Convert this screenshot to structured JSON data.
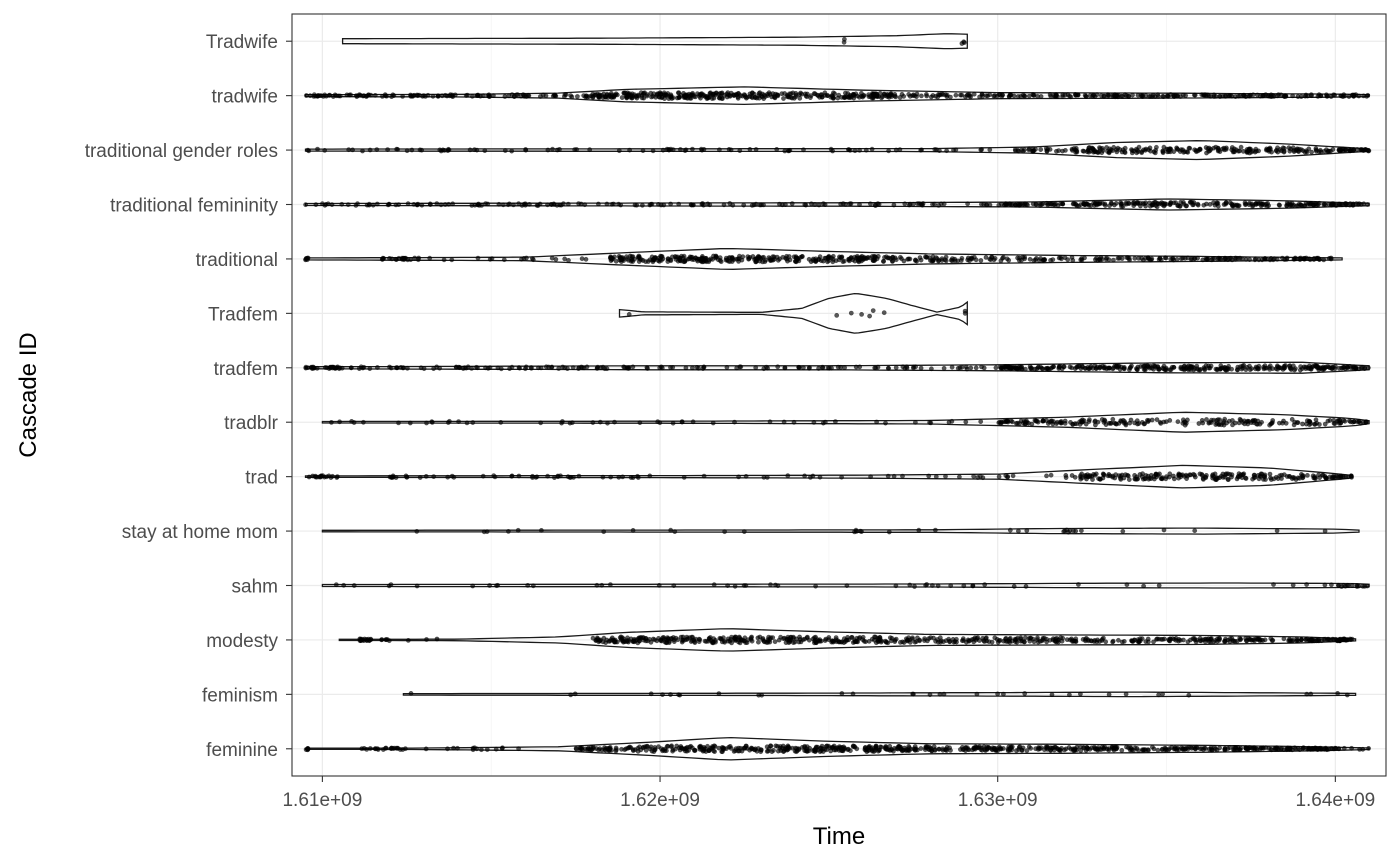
{
  "chart_data": {
    "type": "violin",
    "title": "",
    "xlabel": "Time",
    "ylabel": "Cascade ID",
    "xlim": [
      1609100000,
      1641500000
    ],
    "x_ticks": [
      1610000000,
      1620000000,
      1630000000,
      1640000000
    ],
    "x_tick_labels": [
      "1.61e+09",
      "1.62e+09",
      "1.63e+09",
      "1.64e+09"
    ],
    "grid": true,
    "series": [
      {
        "name": "feminine",
        "range": [
          1609500000,
          1641000000
        ],
        "density": [
          [
            1609500000,
            0.02
          ],
          [
            1613000000,
            0.03
          ],
          [
            1617000000,
            0.08
          ],
          [
            1619500000,
            0.25
          ],
          [
            1622000000,
            0.45
          ],
          [
            1625000000,
            0.3
          ],
          [
            1628000000,
            0.2
          ],
          [
            1632000000,
            0.18
          ],
          [
            1636000000,
            0.14
          ],
          [
            1639500000,
            0.08
          ],
          [
            1641000000,
            0.03
          ]
        ],
        "clusters": [
          [
            1609500000,
            1609600000,
            6
          ],
          [
            1611000000,
            1612500000,
            22
          ],
          [
            1613000000,
            1616500000,
            14
          ],
          [
            1617500000,
            1619000000,
            40
          ],
          [
            1619000000,
            1627000000,
            260
          ],
          [
            1627000000,
            1632000000,
            150
          ],
          [
            1632000000,
            1640000000,
            220
          ],
          [
            1640000000,
            1641000000,
            8
          ]
        ]
      },
      {
        "name": "feminism",
        "range": [
          1612400000,
          1640600000
        ],
        "density": [
          [
            1612400000,
            0.03
          ],
          [
            1620000000,
            0.04
          ],
          [
            1625000000,
            0.05
          ],
          [
            1630000000,
            0.07
          ],
          [
            1634000000,
            0.09
          ],
          [
            1637000000,
            0.07
          ],
          [
            1640600000,
            0.04
          ]
        ],
        "clusters": [
          [
            1612500000,
            1640500000,
            34
          ]
        ]
      },
      {
        "name": "modesty",
        "range": [
          1610500000,
          1640600000
        ],
        "density": [
          [
            1610500000,
            0.02
          ],
          [
            1614000000,
            0.03
          ],
          [
            1617000000,
            0.12
          ],
          [
            1619000000,
            0.3
          ],
          [
            1622000000,
            0.45
          ],
          [
            1625000000,
            0.32
          ],
          [
            1628000000,
            0.22
          ],
          [
            1632000000,
            0.2
          ],
          [
            1636000000,
            0.18
          ],
          [
            1639000000,
            0.12
          ],
          [
            1640600000,
            0.04
          ]
        ],
        "clusters": [
          [
            1611000000,
            1612000000,
            24
          ],
          [
            1612500000,
            1613500000,
            3
          ],
          [
            1618000000,
            1626000000,
            260
          ],
          [
            1626000000,
            1632000000,
            150
          ],
          [
            1632000000,
            1640500000,
            200
          ]
        ]
      },
      {
        "name": "sahm",
        "range": [
          1610000000,
          1641000000
        ],
        "density": [
          [
            1610000000,
            0.04
          ],
          [
            1620000000,
            0.05
          ],
          [
            1628000000,
            0.06
          ],
          [
            1633000000,
            0.09
          ],
          [
            1637000000,
            0.1
          ],
          [
            1640500000,
            0.08
          ],
          [
            1641000000,
            0.05
          ]
        ],
        "clusters": [
          [
            1610000000,
            1640500000,
            50
          ],
          [
            1640000000,
            1641000000,
            14
          ]
        ]
      },
      {
        "name": "stay at home mom",
        "range": [
          1610000000,
          1640700000
        ],
        "density": [
          [
            1610000000,
            0.03
          ],
          [
            1620000000,
            0.04
          ],
          [
            1628000000,
            0.05
          ],
          [
            1631500000,
            0.1
          ],
          [
            1636000000,
            0.12
          ],
          [
            1640000000,
            0.08
          ],
          [
            1640700000,
            0.04
          ]
        ],
        "clusters": [
          [
            1610000000,
            1640500000,
            28
          ],
          [
            1631500000,
            1632500000,
            8
          ]
        ]
      },
      {
        "name": "trad",
        "range": [
          1609500000,
          1640500000
        ],
        "density": [
          [
            1609500000,
            0.03
          ],
          [
            1620000000,
            0.04
          ],
          [
            1626000000,
            0.06
          ],
          [
            1630000000,
            0.1
          ],
          [
            1633000000,
            0.3
          ],
          [
            1635500000,
            0.45
          ],
          [
            1638000000,
            0.35
          ],
          [
            1640000000,
            0.12
          ],
          [
            1640500000,
            0.05
          ]
        ],
        "clusters": [
          [
            1609500000,
            1610500000,
            18
          ],
          [
            1612000000,
            1614000000,
            16
          ],
          [
            1614000000,
            1632000000,
            60
          ],
          [
            1632000000,
            1640500000,
            220
          ]
        ]
      },
      {
        "name": "tradblr",
        "range": [
          1610000000,
          1641000000
        ],
        "density": [
          [
            1610000000,
            0.03
          ],
          [
            1620000000,
            0.04
          ],
          [
            1628000000,
            0.07
          ],
          [
            1632000000,
            0.2
          ],
          [
            1635500000,
            0.4
          ],
          [
            1638500000,
            0.3
          ],
          [
            1640500000,
            0.15
          ],
          [
            1641000000,
            0.06
          ]
        ],
        "clusters": [
          [
            1610000000,
            1630000000,
            50
          ],
          [
            1630000000,
            1641000000,
            220
          ]
        ]
      },
      {
        "name": "tradfem",
        "range": [
          1609500000,
          1641000000
        ],
        "density": [
          [
            1609500000,
            0.04
          ],
          [
            1615000000,
            0.06
          ],
          [
            1620000000,
            0.08
          ],
          [
            1625000000,
            0.08
          ],
          [
            1630000000,
            0.12
          ],
          [
            1635000000,
            0.2
          ],
          [
            1639000000,
            0.22
          ],
          [
            1641000000,
            0.08
          ]
        ],
        "clusters": [
          [
            1609500000,
            1610500000,
            30
          ],
          [
            1610500000,
            1630000000,
            150
          ],
          [
            1630000000,
            1641000000,
            320
          ]
        ]
      },
      {
        "name": "Tradfem",
        "range": [
          1618800000,
          1629100000
        ],
        "density": [
          [
            1618800000,
            0.15
          ],
          [
            1619500000,
            0.06
          ],
          [
            1623000000,
            0.04
          ],
          [
            1624200000,
            0.2
          ],
          [
            1625000000,
            0.6
          ],
          [
            1625800000,
            0.8
          ],
          [
            1626700000,
            0.6
          ],
          [
            1627500000,
            0.3
          ],
          [
            1628200000,
            0.05
          ],
          [
            1628900000,
            0.25
          ],
          [
            1629100000,
            0.45
          ]
        ],
        "clusters": [
          [
            1619000000,
            1619100000,
            1
          ],
          [
            1624500000,
            1626800000,
            6
          ],
          [
            1629000000,
            1629100000,
            2
          ]
        ]
      },
      {
        "name": "traditional",
        "range": [
          1609500000,
          1640200000
        ],
        "density": [
          [
            1609500000,
            0.04
          ],
          [
            1612000000,
            0.05
          ],
          [
            1616000000,
            0.07
          ],
          [
            1619000000,
            0.25
          ],
          [
            1622000000,
            0.42
          ],
          [
            1625000000,
            0.3
          ],
          [
            1628000000,
            0.2
          ],
          [
            1632000000,
            0.14
          ],
          [
            1636000000,
            0.1
          ],
          [
            1640200000,
            0.04
          ]
        ],
        "clusters": [
          [
            1609500000,
            1609600000,
            6
          ],
          [
            1611500000,
            1613000000,
            22
          ],
          [
            1613000000,
            1618000000,
            18
          ],
          [
            1618500000,
            1626500000,
            280
          ],
          [
            1626500000,
            1640000000,
            220
          ]
        ]
      },
      {
        "name": "traditional femininity",
        "range": [
          1609500000,
          1641000000
        ],
        "density": [
          [
            1609500000,
            0.04
          ],
          [
            1615000000,
            0.05
          ],
          [
            1620000000,
            0.06
          ],
          [
            1626000000,
            0.07
          ],
          [
            1631000000,
            0.1
          ],
          [
            1635000000,
            0.22
          ],
          [
            1638500000,
            0.15
          ],
          [
            1641000000,
            0.05
          ]
        ],
        "clusters": [
          [
            1609500000,
            1630000000,
            150
          ],
          [
            1630000000,
            1641000000,
            260
          ]
        ]
      },
      {
        "name": "traditional gender roles",
        "range": [
          1609500000,
          1641000000
        ],
        "density": [
          [
            1609500000,
            0.04
          ],
          [
            1620000000,
            0.05
          ],
          [
            1628000000,
            0.06
          ],
          [
            1631000000,
            0.12
          ],
          [
            1633500000,
            0.3
          ],
          [
            1636000000,
            0.38
          ],
          [
            1638500000,
            0.25
          ],
          [
            1641000000,
            0.05
          ]
        ],
        "clusters": [
          [
            1609500000,
            1630000000,
            90
          ],
          [
            1630500000,
            1641000000,
            260
          ]
        ]
      },
      {
        "name": "tradwife",
        "range": [
          1609500000,
          1641000000
        ],
        "density": [
          [
            1609500000,
            0.04
          ],
          [
            1614000000,
            0.05
          ],
          [
            1617000000,
            0.1
          ],
          [
            1619000000,
            0.25
          ],
          [
            1622500000,
            0.35
          ],
          [
            1626000000,
            0.22
          ],
          [
            1630000000,
            0.12
          ],
          [
            1635000000,
            0.1
          ],
          [
            1640000000,
            0.06
          ],
          [
            1641000000,
            0.04
          ]
        ],
        "clusters": [
          [
            1609500000,
            1618000000,
            120
          ],
          [
            1618000000,
            1626500000,
            320
          ],
          [
            1626500000,
            1641000000,
            260
          ]
        ]
      },
      {
        "name": "Tradwife",
        "range": [
          1610600000,
          1629100000
        ],
        "density": [
          [
            1610600000,
            0.1
          ],
          [
            1618000000,
            0.12
          ],
          [
            1624000000,
            0.16
          ],
          [
            1627000000,
            0.22
          ],
          [
            1628500000,
            0.3
          ],
          [
            1629100000,
            0.28
          ]
        ],
        "clusters": [
          [
            1625400000,
            1625500000,
            2
          ],
          [
            1628900000,
            1629100000,
            3
          ]
        ]
      }
    ]
  }
}
